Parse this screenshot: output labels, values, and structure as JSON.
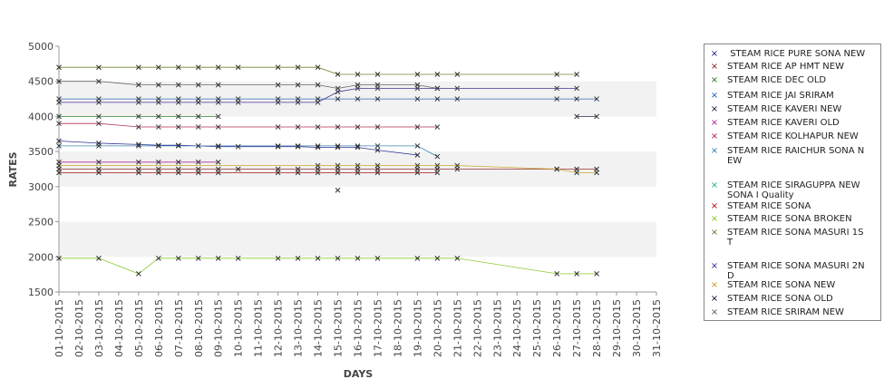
{
  "chart_data": {
    "type": "line",
    "xlabel": "DAYS",
    "ylabel": "RATES",
    "ylim": [
      1500,
      5000
    ],
    "yticks": [
      1500,
      2000,
      2500,
      3000,
      3500,
      4000,
      4500,
      5000
    ],
    "grid": "alternating horizontal bands",
    "legend_position": "right",
    "categories": [
      "01-10-2015",
      "02-10-2015",
      "03-10-2015",
      "04-10-2015",
      "05-10-2015",
      "06-10-2015",
      "07-10-2015",
      "08-10-2015",
      "09-10-2015",
      "10-10-2015",
      "11-10-2015",
      "12-10-2015",
      "13-10-2015",
      "14-10-2015",
      "15-10-2015",
      "16-10-2015",
      "17-10-2015",
      "18-10-2015",
      "19-10-2015",
      "20-10-2015",
      "21-10-2015",
      "22-10-2015",
      "23-10-2015",
      "24-10-2015",
      "25-10-2015",
      "26-10-2015",
      "27-10-2015",
      "28-10-2015",
      "29-10-2015",
      "30-10-2015",
      "31-10-2015"
    ],
    "series": [
      {
        "name": " STEAM RICE PURE SONA NEW",
        "color": "#1a1a8c",
        "values": [
          3650,
          null,
          3620,
          null,
          3600,
          3590,
          3590,
          3580,
          3570,
          3570,
          null,
          3570,
          3570,
          3560,
          3560,
          3560,
          3520,
          null,
          3450,
          null,
          null,
          null,
          null,
          null,
          null,
          null,
          null,
          null,
          null,
          null,
          null
        ]
      },
      {
        "name": "STEAM RICE AP HMT NEW",
        "color": "#8b1a1a",
        "values": [
          3250,
          null,
          3250,
          null,
          3250,
          3250,
          3250,
          3250,
          3250,
          3250,
          null,
          3250,
          3250,
          3250,
          3250,
          3250,
          3250,
          null,
          3250,
          3250,
          3250,
          null,
          null,
          null,
          null,
          3250,
          3250,
          3250,
          null,
          null,
          null
        ]
      },
      {
        "name": "STEAM RICE DEC OLD",
        "color": "#1a7a1a",
        "values": [
          4000,
          null,
          4000,
          null,
          4000,
          4000,
          4000,
          4000,
          4000,
          null,
          null,
          null,
          null,
          null,
          null,
          null,
          null,
          null,
          null,
          null,
          null,
          null,
          null,
          null,
          null,
          null,
          null,
          null,
          null,
          null,
          null
        ]
      },
      {
        "name": "STEAM RICE JAI SRIRAM",
        "color": "#1a5aa8",
        "values": [
          4250,
          null,
          4250,
          null,
          4250,
          4250,
          4250,
          4250,
          4250,
          4250,
          null,
          4250,
          4250,
          4250,
          4250,
          4250,
          4250,
          null,
          4250,
          4250,
          4250,
          null,
          null,
          null,
          null,
          4250,
          4250,
          4250,
          null,
          null,
          null
        ]
      },
      {
        "name": "STEAM RICE KAVERI NEW",
        "color": "#111133",
        "values": [
          null,
          null,
          null,
          null,
          null,
          null,
          null,
          null,
          null,
          null,
          null,
          null,
          null,
          null,
          null,
          null,
          null,
          null,
          null,
          null,
          null,
          null,
          null,
          null,
          null,
          null,
          4000,
          4000,
          null,
          null,
          null
        ]
      },
      {
        "name": "STEAM RICE KAVERI OLD",
        "color": "#a81a8c",
        "values": [
          3350,
          null,
          3350,
          null,
          3350,
          3350,
          3350,
          3350,
          3350,
          null,
          null,
          null,
          null,
          null,
          null,
          null,
          null,
          null,
          null,
          null,
          null,
          null,
          null,
          null,
          null,
          null,
          null,
          null,
          null,
          null,
          null
        ]
      },
      {
        "name": "STEAM RICE KOLHAPUR NEW",
        "color": "#a81a3c",
        "values": [
          3900,
          null,
          3900,
          null,
          3850,
          3850,
          3850,
          3850,
          3850,
          null,
          null,
          3850,
          3850,
          3850,
          3850,
          3850,
          3850,
          null,
          3850,
          3850,
          null,
          null,
          null,
          null,
          null,
          null,
          null,
          null,
          null,
          null,
          null
        ]
      },
      {
        "name": "STEAM RICE RAICHUR SONA N\nEW",
        "color": "#2a7aa8",
        "values": [
          3580,
          null,
          3580,
          null,
          3580,
          3580,
          3580,
          3580,
          3580,
          null,
          null,
          3580,
          3580,
          3580,
          3580,
          3580,
          3580,
          null,
          3580,
          3430,
          null,
          null,
          null,
          null,
          null,
          null,
          null,
          null,
          null,
          null,
          null
        ]
      },
      {
        "name": "STEAM RICE SIRAGUPPA NEW\nSONA I Quality",
        "color": "#1aa88c",
        "values": [
          null,
          null,
          null,
          null,
          null,
          null,
          null,
          null,
          null,
          null,
          null,
          null,
          null,
          null,
          null,
          null,
          null,
          null,
          null,
          null,
          null,
          null,
          null,
          null,
          null,
          null,
          null,
          null,
          null,
          null,
          null
        ]
      },
      {
        "name": "STEAM RICE SONA",
        "color": "#a80000",
        "values": [
          3200,
          null,
          3200,
          null,
          3200,
          3200,
          3200,
          3200,
          3200,
          null,
          null,
          3200,
          3200,
          3200,
          3200,
          3200,
          3200,
          null,
          3200,
          3200,
          null,
          null,
          null,
          null,
          null,
          null,
          null,
          null,
          null,
          null,
          null
        ]
      },
      {
        "name": "STEAM RICE SONA BROKEN",
        "color": "#7ac81a",
        "values": [
          1980,
          null,
          1980,
          null,
          1760,
          1980,
          1980,
          1980,
          1980,
          1980,
          null,
          1980,
          1980,
          1980,
          1980,
          1980,
          1980,
          null,
          1980,
          1980,
          1980,
          null,
          null,
          null,
          null,
          1760,
          1760,
          1760,
          null,
          null,
          null
        ]
      },
      {
        "name": "STEAM RICE SONA MASURI 1S\nT",
        "color": "#5a7a1a",
        "values": [
          4700,
          null,
          4700,
          null,
          4700,
          4700,
          4700,
          4700,
          4700,
          4700,
          null,
          4700,
          4700,
          4700,
          4600,
          4600,
          4600,
          null,
          4600,
          4600,
          4600,
          null,
          null,
          null,
          null,
          4600,
          4600,
          null,
          null,
          null,
          null
        ]
      },
      {
        "name": "STEAM RICE SONA MASURI 2N\nD",
        "color": "#3a1a8c",
        "values": [
          4200,
          null,
          4200,
          null,
          4200,
          4200,
          4200,
          4200,
          4200,
          4200,
          null,
          4200,
          4200,
          4200,
          4350,
          4400,
          4400,
          null,
          4400,
          4400,
          4400,
          null,
          null,
          null,
          null,
          4400,
          4400,
          null,
          null,
          null,
          null
        ]
      },
      {
        "name": "STEAM RICE SONA NEW",
        "color": "#c8a01a",
        "values": [
          3300,
          null,
          null,
          null,
          null,
          null,
          null,
          null,
          null,
          null,
          null,
          null,
          null,
          3300,
          3300,
          3300,
          3300,
          null,
          3300,
          3300,
          3300,
          null,
          null,
          null,
          null,
          3250,
          3200,
          3200,
          null,
          null,
          null
        ]
      },
      {
        "name": "STEAM RICE SONA OLD",
        "color": "#0a0a2a",
        "values": [
          null,
          null,
          null,
          null,
          null,
          null,
          null,
          null,
          null,
          null,
          null,
          null,
          null,
          null,
          2950,
          null,
          null,
          null,
          null,
          null,
          null,
          null,
          null,
          null,
          null,
          null,
          null,
          null,
          null,
          null,
          null
        ]
      },
      {
        "name": "STEAM RICE SRIRAM NEW",
        "color": "#555555",
        "values": [
          4500,
          null,
          4500,
          null,
          4450,
          4450,
          4450,
          4450,
          4450,
          null,
          null,
          4450,
          4450,
          4450,
          4400,
          4450,
          4450,
          null,
          4450,
          4400,
          null,
          null,
          null,
          null,
          null,
          null,
          null,
          null,
          null,
          null,
          null
        ]
      }
    ]
  }
}
